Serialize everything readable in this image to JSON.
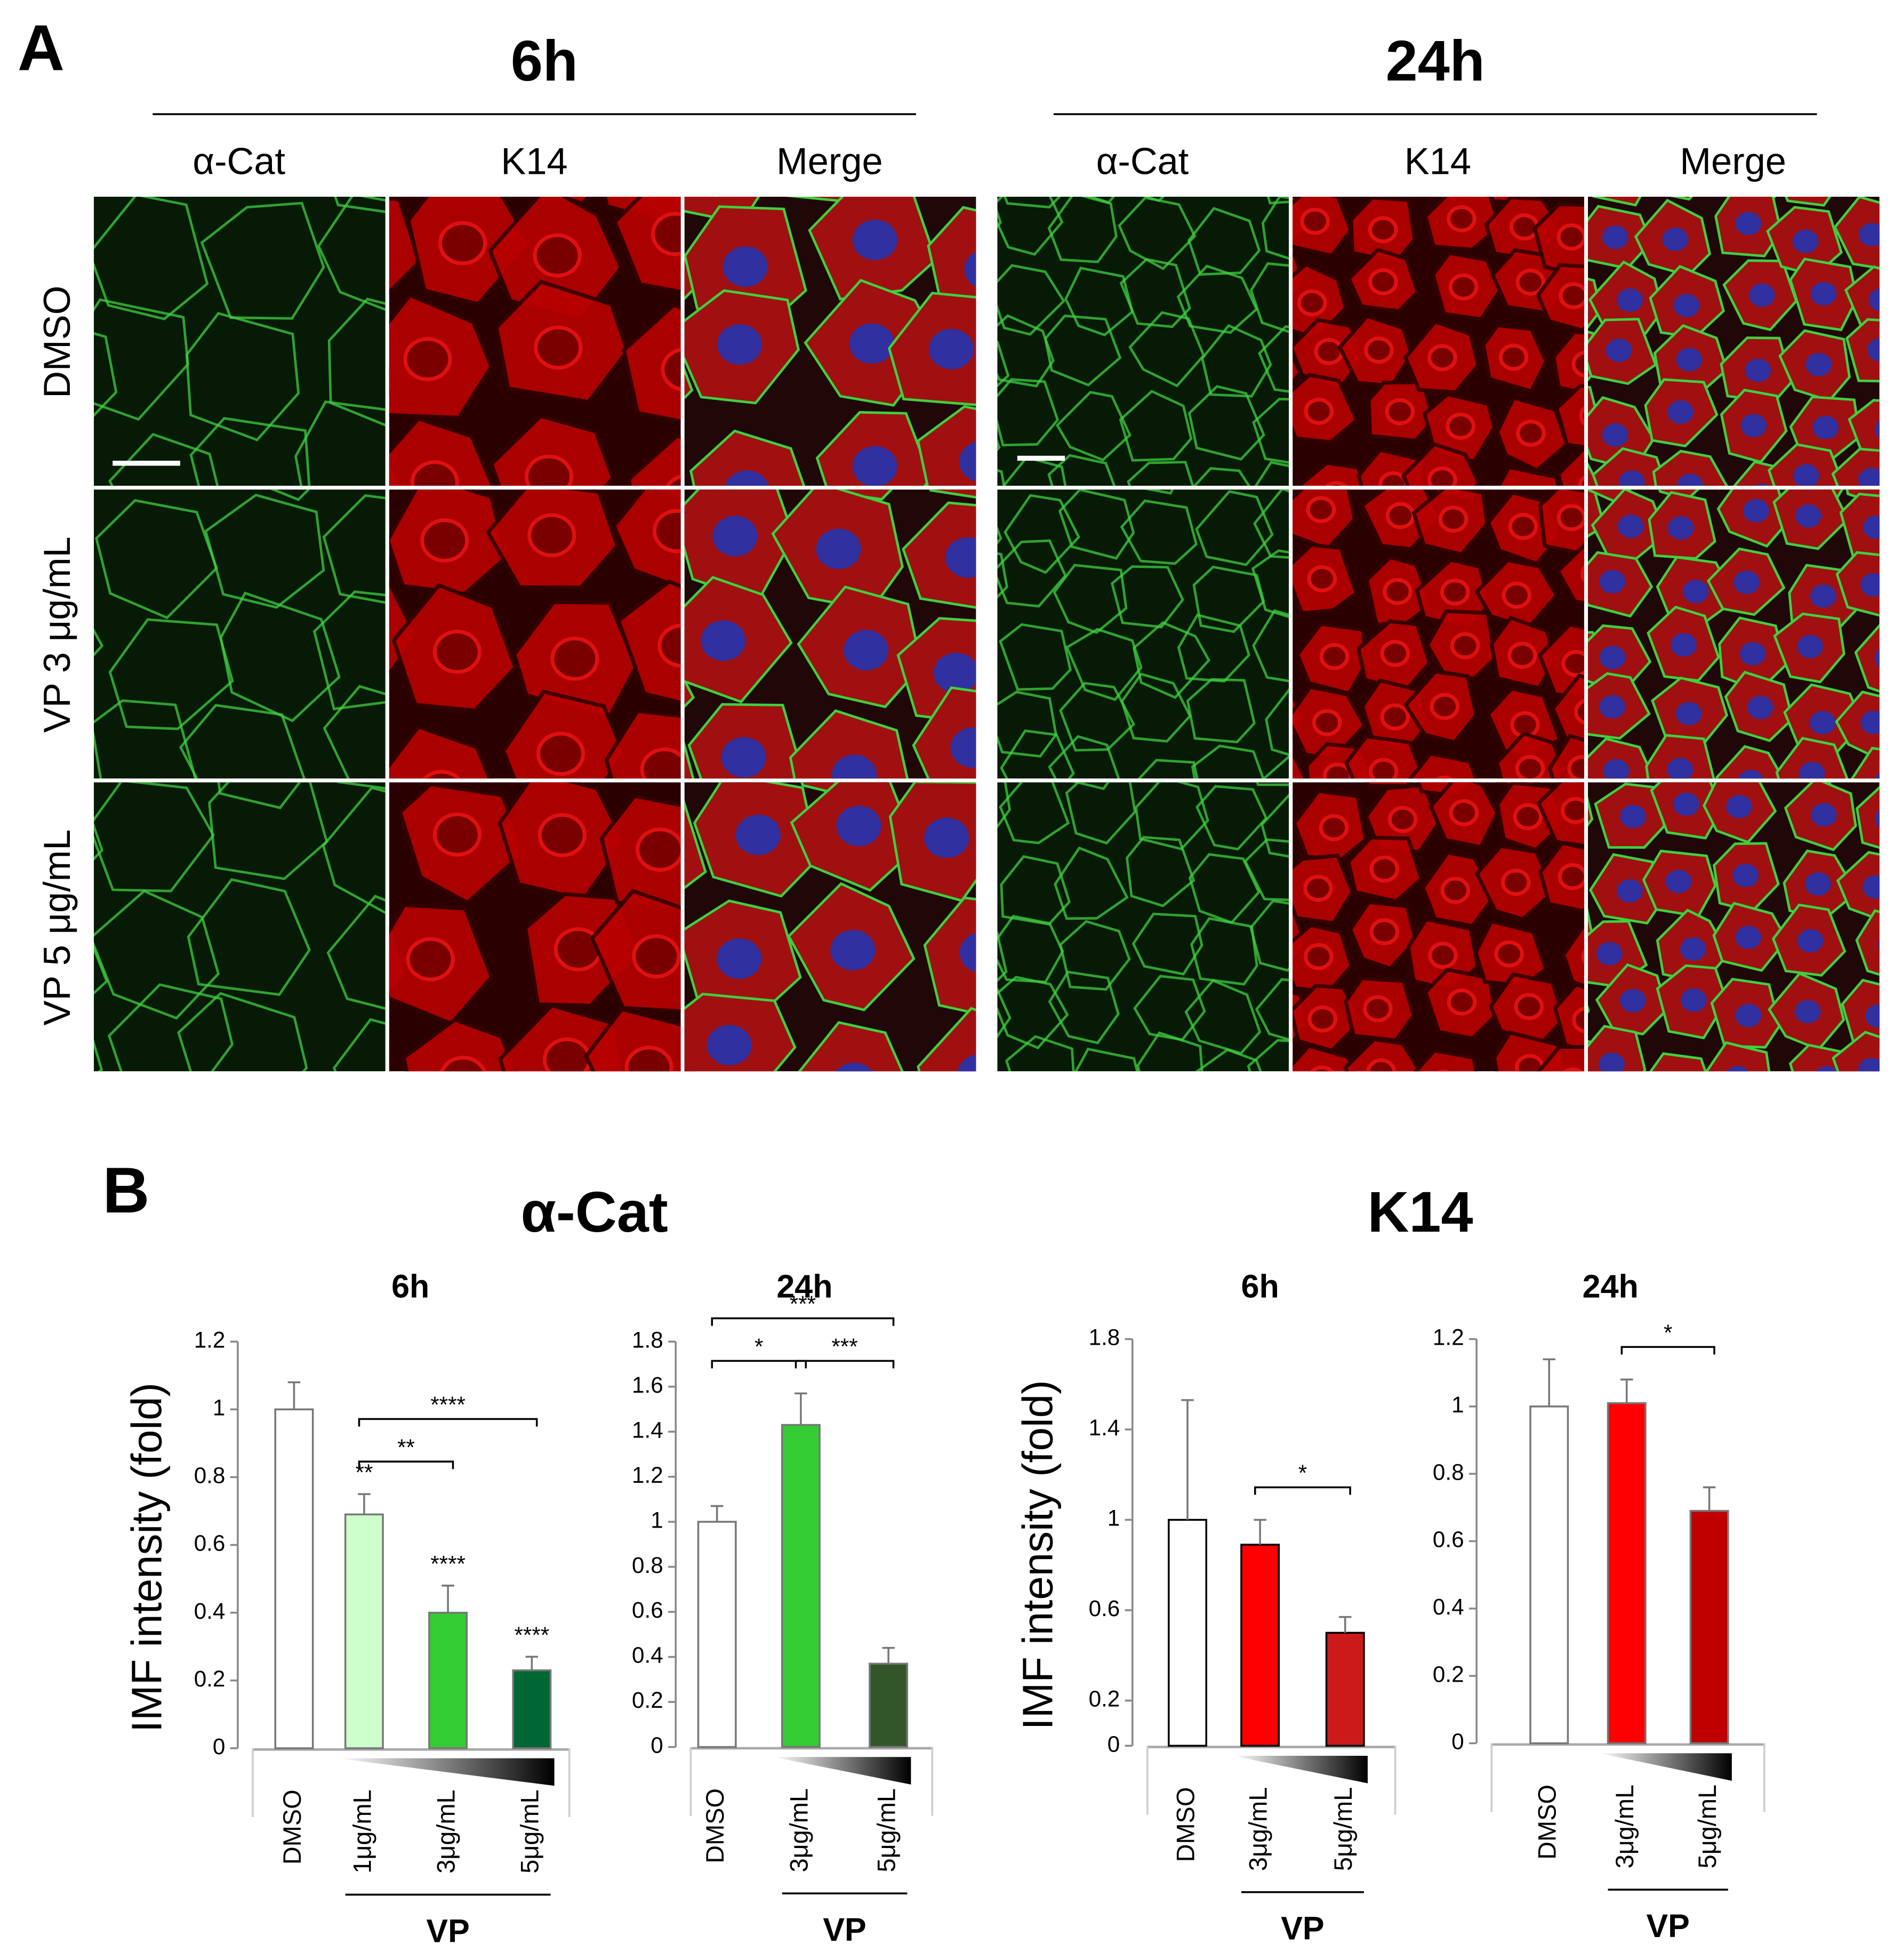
{
  "panel_a": {
    "label": "A",
    "times": [
      "6h",
      "24h"
    ],
    "channels": [
      "α-Cat",
      "K14",
      "Merge"
    ],
    "conditions": [
      "DMSO",
      "VP 3 μg/mL",
      "VP 5 μg/mL"
    ]
  },
  "panel_b": {
    "label": "B",
    "sections": [
      "α-Cat",
      "K14"
    ]
  },
  "chart_data": [
    {
      "type": "bar",
      "title": "6h",
      "ylabel": "IMF intensity (fold)",
      "categories": [
        "DMSO",
        "1μg/mL",
        "3μg/mL",
        "5μg/mL"
      ],
      "values": [
        1,
        0.69,
        0.4,
        0.23
      ],
      "errors": [
        0.08,
        0.06,
        0.08,
        0.04
      ],
      "colors": [
        "#ffffff",
        "#ccffcc",
        "#33cc33",
        "#006633"
      ],
      "bar_labels": [
        null,
        "**",
        "****",
        "****"
      ],
      "comparisons": [
        {
          "pair": [
            1,
            2
          ],
          "label": "**"
        },
        {
          "pair": [
            1,
            3
          ],
          "label": "****"
        }
      ],
      "group_label": "VP",
      "ylim": [
        0,
        1.2
      ],
      "yticks": [
        0,
        0.2,
        0.4,
        0.6,
        0.8,
        1,
        1.2
      ]
    },
    {
      "type": "bar",
      "title": "24h",
      "categories": [
        "DMSO",
        "3μg/mL",
        "5μg/mL"
      ],
      "values": [
        1,
        1.43,
        0.37
      ],
      "errors": [
        0.07,
        0.14,
        0.07
      ],
      "colors": [
        "#ffffff",
        "#33cc33",
        "#33552a"
      ],
      "comparisons": [
        {
          "pair": [
            0,
            1
          ],
          "label": "*"
        },
        {
          "pair": [
            1,
            2
          ],
          "label": "***"
        },
        {
          "pair": [
            0,
            2
          ],
          "label": "***"
        }
      ],
      "group_label": "VP",
      "ylim": [
        0,
        1.8
      ],
      "yticks": [
        0,
        0.2,
        0.4,
        0.6,
        0.8,
        1,
        1.2,
        1.4,
        1.6,
        1.8
      ]
    },
    {
      "type": "bar",
      "title": "6h",
      "ylabel": "IMF intensity (fold)",
      "categories": [
        "DMSO",
        "3μg/mL",
        "5μg/mL"
      ],
      "values": [
        1,
        0.89,
        0.5
      ],
      "errors": [
        0.53,
        0.11,
        0.07
      ],
      "colors": [
        "#ffffff",
        "#ff0000",
        "#cc1a1a"
      ],
      "comparisons": [
        {
          "pair": [
            1,
            2
          ],
          "label": "*"
        }
      ],
      "group_label": "VP",
      "ylim": [
        0,
        1.8
      ],
      "yticks": [
        0,
        0.2,
        0.6,
        1,
        1.4,
        1.8
      ]
    },
    {
      "type": "bar",
      "title": "24h",
      "categories": [
        "DMSO",
        "3μg/mL",
        "5μg/mL"
      ],
      "values": [
        1,
        1.01,
        0.69
      ],
      "errors": [
        0.14,
        0.07,
        0.07
      ],
      "colors": [
        "#ffffff",
        "#ff0000",
        "#c00000"
      ],
      "comparisons": [
        {
          "pair": [
            1,
            2
          ],
          "label": "*"
        }
      ],
      "group_label": "VP",
      "ylim": [
        0,
        1.2
      ],
      "yticks": [
        0,
        0.2,
        0.4,
        0.6,
        0.8,
        1,
        1.2
      ]
    }
  ]
}
